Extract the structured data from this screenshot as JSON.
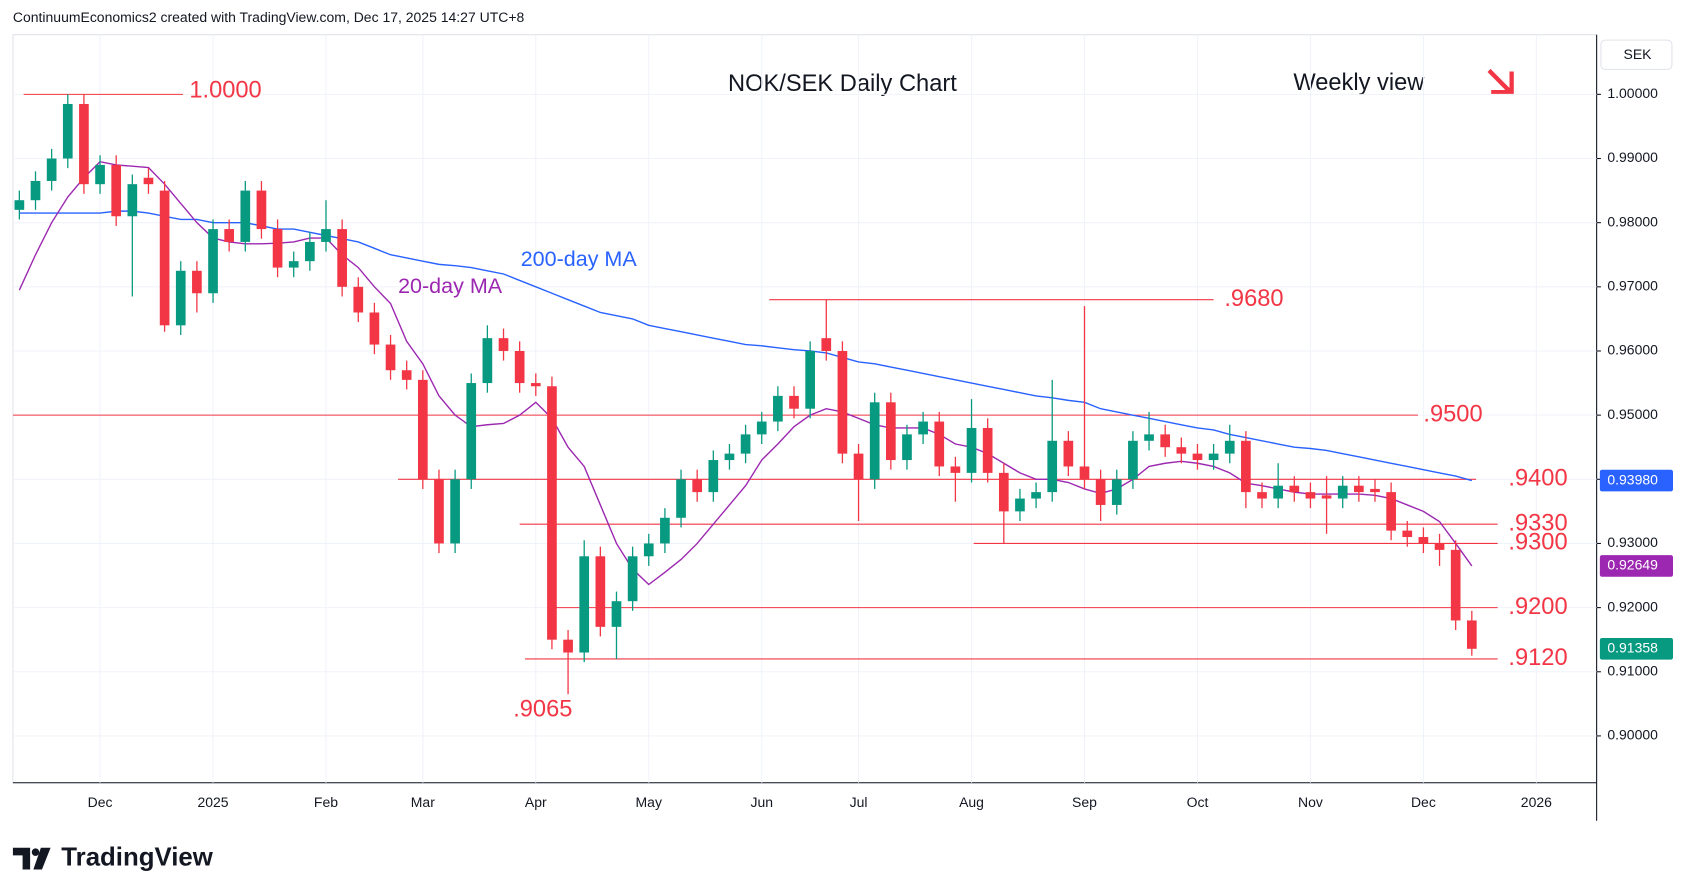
{
  "header": {
    "attribution": "ContinuumEconomics2 created with TradingView.com, Dec 17, 2025 14:27 UTC+8",
    "currency": "SEK",
    "brand": "TradingView"
  },
  "chart_data": {
    "type": "candlestick",
    "title": "NOK/SEK Daily Chart",
    "subtitle": "Weekly view",
    "categories": [
      null,
      null,
      null,
      null,
      null,
      "Dec",
      null,
      null,
      null,
      null,
      null,
      null,
      "2025",
      null,
      null,
      null,
      null,
      null,
      null,
      "Feb",
      null,
      null,
      null,
      null,
      null,
      "Mar",
      null,
      null,
      null,
      null,
      null,
      null,
      "Apr",
      null,
      null,
      null,
      null,
      null,
      null,
      "May",
      null,
      null,
      null,
      null,
      null,
      null,
      "Jun",
      null,
      null,
      null,
      null,
      null,
      "Jul",
      null,
      null,
      null,
      null,
      null,
      null,
      "Aug",
      null,
      null,
      null,
      null,
      null,
      null,
      "Sep",
      null,
      null,
      null,
      null,
      null,
      null,
      "Oct",
      null,
      null,
      null,
      null,
      null,
      null,
      "Nov",
      null,
      null,
      null,
      null,
      null,
      null,
      "Dec",
      null,
      null,
      null,
      null,
      null,
      null,
      "2026"
    ],
    "open": [
      0.982,
      0.9835,
      0.9865,
      0.99,
      0.9985,
      0.986,
      0.989,
      0.981,
      0.987,
      0.985,
      0.964,
      0.9725,
      0.969,
      0.979,
      0.977,
      0.985,
      0.979,
      0.973,
      0.974,
      0.977,
      0.979,
      0.97,
      0.966,
      0.961,
      0.957,
      0.9555,
      0.94,
      0.93,
      0.94,
      0.955,
      0.962,
      0.96,
      0.955,
      0.9545,
      0.915,
      0.913,
      0.928,
      0.917,
      0.921,
      0.928,
      0.93,
      0.934,
      0.94,
      0.938,
      0.943,
      0.944,
      0.947,
      0.949,
      0.953,
      0.951,
      0.962,
      0.96,
      0.944,
      0.94,
      0.952,
      0.943,
      0.947,
      0.949,
      0.942,
      0.941,
      0.948,
      0.941,
      0.935,
      0.937,
      0.938,
      0.946,
      0.942,
      0.94,
      0.936,
      0.94,
      0.946,
      0.947,
      0.945,
      0.944,
      0.943,
      0.944,
      0.946,
      0.938,
      0.937,
      0.939,
      0.938,
      0.9375,
      0.937,
      0.939,
      0.9385,
      0.938,
      0.932,
      0.931,
      0.93,
      0.929,
      0.918,
      null,
      null,
      null,
      null
    ],
    "high": [
      0.985,
      0.988,
      0.9915,
      1.0,
      1.0,
      0.9905,
      0.9905,
      0.9875,
      0.9885,
      0.9865,
      0.974,
      0.974,
      0.9805,
      0.9805,
      0.9865,
      0.9865,
      0.9805,
      0.9755,
      0.9785,
      0.9835,
      0.9805,
      0.9715,
      0.9675,
      0.9625,
      0.9585,
      0.957,
      0.9415,
      0.9415,
      0.9565,
      0.964,
      0.9635,
      0.9615,
      0.9565,
      0.956,
      0.9165,
      0.9305,
      0.9295,
      0.9225,
      0.9295,
      0.9315,
      0.9355,
      0.9415,
      0.9415,
      0.9445,
      0.9455,
      0.9485,
      0.9505,
      0.9545,
      0.9545,
      0.9615,
      0.968,
      0.9615,
      0.9455,
      0.9535,
      0.9535,
      0.9485,
      0.9505,
      0.9505,
      0.9435,
      0.9525,
      0.9495,
      0.9425,
      0.9385,
      0.9395,
      0.9555,
      0.9475,
      0.967,
      0.9415,
      0.9415,
      0.9475,
      0.9505,
      0.9485,
      0.9465,
      0.9455,
      0.9455,
      0.9485,
      0.9475,
      0.9395,
      0.9425,
      0.9405,
      0.9395,
      0.9405,
      0.9405,
      0.9405,
      0.94,
      0.9395,
      0.9335,
      0.9325,
      0.9315,
      0.9305,
      0.9195,
      null,
      null,
      null,
      null
    ],
    "low": [
      0.9805,
      0.982,
      0.985,
      0.9885,
      0.9845,
      0.9845,
      0.9795,
      0.9685,
      0.9845,
      0.963,
      0.9625,
      0.966,
      0.9675,
      0.9755,
      0.9755,
      0.9775,
      0.9715,
      0.9715,
      0.9725,
      0.9755,
      0.9685,
      0.9645,
      0.9595,
      0.9555,
      0.954,
      0.9385,
      0.9285,
      0.9285,
      0.9385,
      0.9535,
      0.9585,
      0.9535,
      0.953,
      0.9135,
      0.9065,
      0.9115,
      0.9155,
      0.912,
      0.9195,
      0.9265,
      0.9285,
      0.9325,
      0.9365,
      0.9365,
      0.9415,
      0.9425,
      0.9455,
      0.9475,
      0.9495,
      0.9495,
      0.9585,
      0.9425,
      0.9335,
      0.9385,
      0.9415,
      0.9415,
      0.9455,
      0.9405,
      0.9365,
      0.9395,
      0.9395,
      0.93,
      0.9335,
      0.9355,
      0.9365,
      0.9405,
      0.9385,
      0.9335,
      0.9345,
      0.9385,
      0.9445,
      0.9435,
      0.9425,
      0.9415,
      0.9415,
      0.9425,
      0.9355,
      0.9355,
      0.9355,
      0.9365,
      0.9355,
      0.9315,
      0.9355,
      0.9365,
      0.9365,
      0.9305,
      0.9295,
      0.9285,
      0.9265,
      0.9165,
      0.9125,
      null,
      null,
      null,
      null
    ],
    "close": [
      0.9835,
      0.9865,
      0.99,
      0.9985,
      0.986,
      0.989,
      0.981,
      0.986,
      0.986,
      0.964,
      0.9725,
      0.969,
      0.979,
      0.977,
      0.985,
      0.979,
      0.973,
      0.974,
      0.977,
      0.979,
      0.97,
      0.966,
      0.961,
      0.957,
      0.9555,
      0.94,
      0.93,
      0.94,
      0.955,
      0.962,
      0.96,
      0.955,
      0.9545,
      0.915,
      0.913,
      0.928,
      0.917,
      0.921,
      0.928,
      0.93,
      0.934,
      0.94,
      0.938,
      0.943,
      0.944,
      0.947,
      0.949,
      0.953,
      0.951,
      0.96,
      0.96,
      0.944,
      0.94,
      0.952,
      0.943,
      0.947,
      0.949,
      0.942,
      0.941,
      0.948,
      0.941,
      0.935,
      0.937,
      0.938,
      0.946,
      0.942,
      0.94,
      0.936,
      0.94,
      0.946,
      0.947,
      0.945,
      0.944,
      0.943,
      0.944,
      0.946,
      0.938,
      0.937,
      0.939,
      0.938,
      0.937,
      0.937,
      0.939,
      0.938,
      0.938,
      0.932,
      0.931,
      0.93,
      0.929,
      0.918,
      0.91358,
      null,
      null,
      null,
      null
    ],
    "up_color": "#089981",
    "down_color": "#f23645",
    "last_price": 0.91358,
    "series": [
      {
        "name": "200-day MA",
        "color": "#2962ff",
        "values": [
          0.9815,
          0.9815,
          0.9815,
          0.9815,
          0.9815,
          0.9815,
          0.9818,
          0.9818,
          0.9815,
          0.981,
          0.9805,
          0.9805,
          0.98,
          0.98,
          0.98,
          0.9795,
          0.979,
          0.979,
          0.9785,
          0.978,
          0.9775,
          0.977,
          0.976,
          0.975,
          0.9745,
          0.974,
          0.9735,
          0.9733,
          0.973,
          0.9725,
          0.972,
          0.971,
          0.97,
          0.969,
          0.968,
          0.967,
          0.966,
          0.9655,
          0.965,
          0.964,
          0.9635,
          0.963,
          0.9625,
          0.962,
          0.9615,
          0.961,
          0.9608,
          0.9605,
          0.9602,
          0.96,
          0.9597,
          0.959,
          0.9583,
          0.958,
          0.9575,
          0.957,
          0.9565,
          0.956,
          0.9555,
          0.955,
          0.9545,
          0.954,
          0.9535,
          0.953,
          0.9527,
          0.9523,
          0.952,
          0.951,
          0.9505,
          0.95,
          0.9495,
          0.949,
          0.9485,
          0.948,
          0.9477,
          0.947,
          0.9465,
          0.946,
          0.9455,
          0.945,
          0.9448,
          0.9445,
          0.944,
          0.9435,
          0.943,
          0.9425,
          0.942,
          0.9415,
          0.941,
          0.9405,
          0.9398,
          null,
          null,
          null,
          null
        ],
        "last_label": {
          "value": 0.9398,
          "label": "0.93980"
        }
      },
      {
        "name": "20-day MA",
        "color": "#9c27b0",
        "values": [
          0.9695,
          0.975,
          0.98,
          0.984,
          0.987,
          0.9895,
          0.989,
          0.9888,
          0.9886,
          0.986,
          0.983,
          0.98,
          0.9776,
          0.977,
          0.9767,
          0.9767,
          0.9768,
          0.977,
          0.9776,
          0.9776,
          0.975,
          0.973,
          0.97,
          0.9674,
          0.9615,
          0.958,
          0.953,
          0.95,
          0.9482,
          0.9485,
          0.9487,
          0.95,
          0.952,
          0.9495,
          0.945,
          0.942,
          0.936,
          0.93,
          0.926,
          0.9236,
          0.9255,
          0.9275,
          0.93,
          0.933,
          0.936,
          0.939,
          0.943,
          0.9455,
          0.9482,
          0.95,
          0.951,
          0.9505,
          0.9495,
          0.9485,
          0.948,
          0.948,
          0.948,
          0.947,
          0.9455,
          0.945,
          0.944,
          0.9425,
          0.941,
          0.94,
          0.94,
          0.9395,
          0.9385,
          0.9378,
          0.9385,
          0.94,
          0.942,
          0.9425,
          0.9428,
          0.9425,
          0.942,
          0.941,
          0.9394,
          0.939,
          0.9385,
          0.938,
          0.9377,
          0.9377,
          0.9377,
          0.9377,
          0.9375,
          0.937,
          0.936,
          0.935,
          0.9334,
          0.93,
          0.92649,
          null,
          null,
          null,
          null
        ],
        "last_label": {
          "value": 0.92649,
          "label": "0.92649"
        }
      }
    ],
    "levels": [
      {
        "value": 1.0,
        "label": "1.0000"
      },
      {
        "value": 0.968,
        "label": ".9680"
      },
      {
        "value": 0.95,
        "label": ".9500"
      },
      {
        "value": 0.94,
        "label": ".9400"
      },
      {
        "value": 0.933,
        "label": ".9330"
      },
      {
        "value": 0.93,
        "label": ".9300"
      },
      {
        "value": 0.92,
        "label": ".9200"
      },
      {
        "value": 0.912,
        "label": ".9120"
      },
      {
        "value": 0.9065,
        "label": ".9065"
      }
    ],
    "ylim": [
      0.8927,
      1.0093
    ],
    "yticks": [
      {
        "value": 0.9,
        "label": "0.90000"
      },
      {
        "value": 0.91,
        "label": "0.91000"
      },
      {
        "value": 0.92,
        "label": "0.92000"
      },
      {
        "value": 0.93,
        "label": "0.93000"
      },
      {
        "value": 0.94,
        "label": "0.94000"
      },
      {
        "value": 0.95,
        "label": "0.95000"
      },
      {
        "value": 0.96,
        "label": "0.96000"
      },
      {
        "value": 0.97,
        "label": "0.97000"
      },
      {
        "value": 0.98,
        "label": "0.98000"
      },
      {
        "value": 0.99,
        "label": "0.99000"
      },
      {
        "value": 1.0,
        "label": "1.00000"
      }
    ],
    "grid": true
  }
}
